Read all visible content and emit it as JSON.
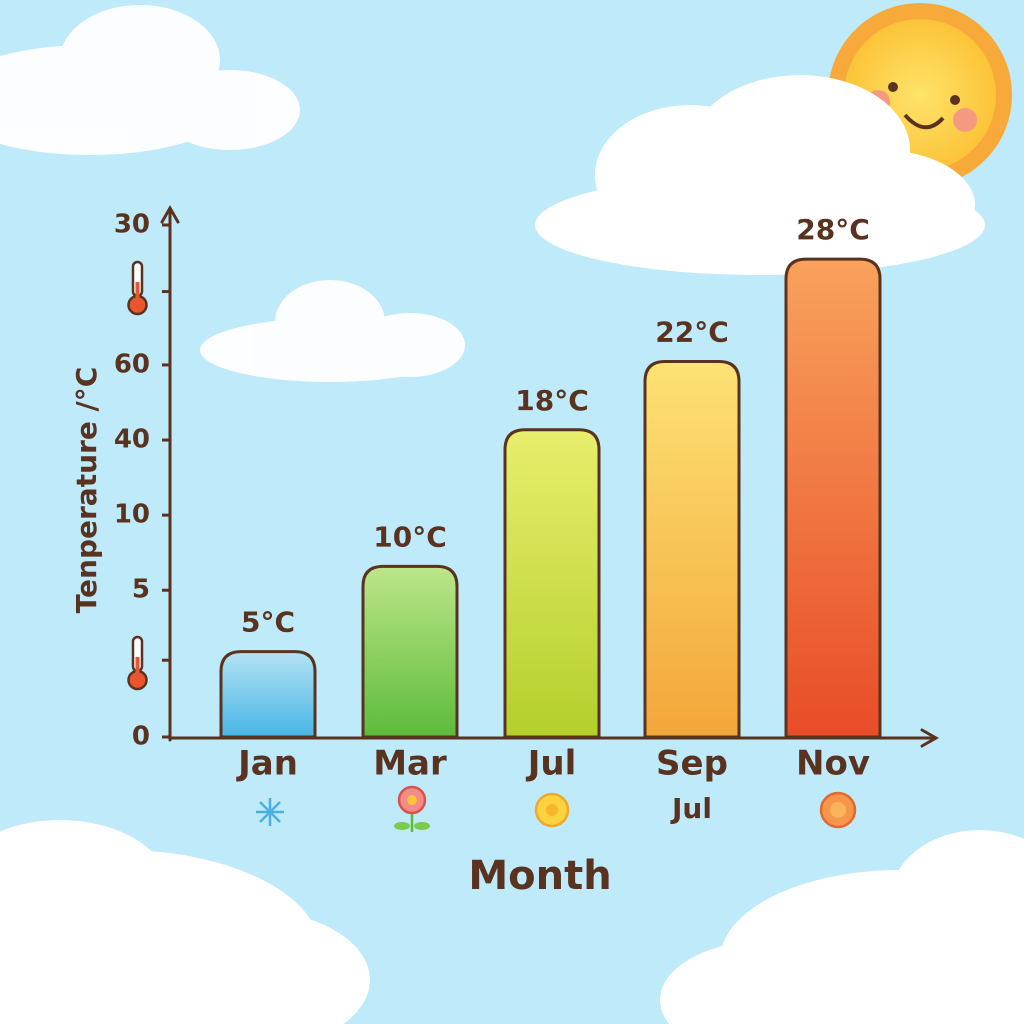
{
  "chart_data": {
    "type": "bar",
    "y_label": "Tenperature /°C",
    "x_label": "Month",
    "categories": [
      "Jan",
      "Mar",
      "Jul",
      "Sep",
      "Nov"
    ],
    "values": [
      5,
      10,
      18,
      22,
      28
    ],
    "value_labels": [
      "5°C",
      "10°C",
      "18°C",
      "22°C",
      "28°C"
    ],
    "colors": [
      [
        "#b4e3f4",
        "#47b5e6"
      ],
      [
        "#bde68a",
        "#5dbb3b"
      ],
      [
        "#e8ee6c",
        "#b4cf2d"
      ],
      [
        "#fde274",
        "#f3a63a"
      ],
      [
        "#f8a25c",
        "#e84c28"
      ]
    ],
    "annotation": "Jul",
    "ylim": [
      0,
      30
    ],
    "yticks": [
      0,
      {
        "value": 4.5,
        "label": null
      },
      {
        "value": 8.6,
        "label": "5"
      },
      {
        "value": 13,
        "label": "10"
      },
      {
        "value": 17.4,
        "label": "40"
      },
      {
        "value": 21.8,
        "label": "60"
      },
      {
        "value": 26.1,
        "label": null
      },
      30
    ]
  }
}
